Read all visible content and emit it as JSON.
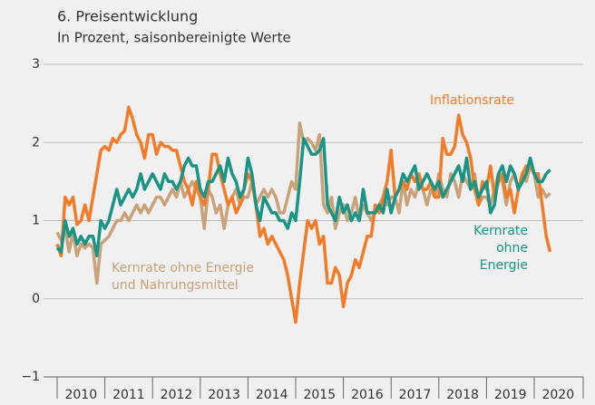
{
  "chart_data": {
    "type": "line",
    "title": "6. Preisentwicklung",
    "subtitle": "In Prozent, saisonbereinigte Werte",
    "categories": [
      "2010",
      null,
      null,
      null,
      null,
      null,
      null,
      null,
      null,
      null,
      null,
      null,
      "2011",
      null,
      null,
      null,
      null,
      null,
      null,
      null,
      null,
      null,
      null,
      null,
      "2012",
      null,
      null,
      null,
      null,
      null,
      null,
      null,
      null,
      null,
      null,
      null,
      "2013",
      null,
      null,
      null,
      null,
      null,
      null,
      null,
      null,
      null,
      null,
      null,
      "2014",
      null,
      null,
      null,
      null,
      null,
      null,
      null,
      null,
      null,
      null,
      null,
      "2015",
      null,
      null,
      null,
      null,
      null,
      null,
      null,
      null,
      null,
      null,
      null,
      "2016",
      null,
      null,
      null,
      null,
      null,
      null,
      null,
      null,
      null,
      null,
      null,
      "2017",
      null,
      null,
      null,
      null,
      null,
      null,
      null,
      null,
      null,
      null,
      null,
      "2018",
      null,
      null,
      null,
      null,
      null,
      null,
      null,
      null,
      null,
      null,
      null,
      "2019",
      null,
      null,
      null,
      null,
      null,
      null,
      null,
      null,
      null,
      null,
      null,
      "2020",
      null,
      null,
      null,
      null
    ],
    "series": [
      {
        "name": "Kernrate ohne Energie und Nahrungsmittel",
        "color": "#c9a27a",
        "values": [
          0.85,
          0.75,
          0.9,
          0.6,
          0.85,
          0.55,
          0.7,
          0.65,
          0.7,
          0.65,
          0.2,
          0.7,
          0.75,
          0.8,
          0.9,
          1.0,
          1.0,
          1.1,
          1.0,
          1.1,
          1.2,
          1.1,
          1.2,
          1.1,
          1.2,
          1.3,
          1.3,
          1.2,
          1.3,
          1.4,
          1.3,
          1.5,
          1.3,
          1.4,
          1.5,
          1.4,
          1.3,
          0.9,
          1.4,
          1.3,
          1.1,
          1.2,
          0.9,
          1.2,
          1.3,
          1.4,
          1.2,
          1.3,
          1.3,
          1.5,
          1.2,
          1.3,
          1.4,
          1.3,
          1.4,
          1.3,
          1.1,
          1.1,
          1.3,
          1.5,
          1.4,
          2.25,
          2.0,
          2.05,
          2.0,
          1.9,
          2.1,
          1.2,
          1.1,
          1.3,
          0.9,
          1.1,
          1.2,
          1.0,
          1.1,
          1.3,
          1.0,
          1.2,
          1.1,
          1.0,
          1.1,
          1.2,
          1.3,
          1.2,
          1.3,
          1.3,
          1.1,
          1.5,
          1.2,
          1.4,
          1.3,
          1.5,
          1.4,
          1.2,
          1.4,
          1.3,
          1.6,
          1.4,
          1.3,
          1.6,
          1.5,
          1.3,
          1.6,
          1.5,
          1.4,
          1.6,
          1.2,
          1.3,
          1.3,
          1.2,
          1.4,
          1.6,
          1.5,
          1.2,
          1.5,
          1.6,
          1.4,
          1.6,
          1.5,
          1.7,
          1.6,
          1.3,
          1.4,
          1.3,
          1.35
        ]
      },
      {
        "name": "Inflationsrate",
        "color": "#f07c2a",
        "values": [
          0.7,
          0.55,
          1.3,
          1.2,
          1.3,
          0.95,
          1.0,
          1.2,
          1.0,
          1.3,
          1.6,
          1.9,
          1.95,
          1.9,
          2.05,
          2.0,
          2.1,
          2.15,
          2.45,
          2.3,
          2.1,
          2.0,
          1.8,
          2.1,
          2.1,
          1.85,
          2.0,
          1.95,
          1.95,
          1.9,
          1.9,
          1.7,
          1.5,
          1.4,
          1.2,
          1.5,
          1.3,
          1.2,
          1.4,
          1.85,
          1.85,
          1.6,
          1.4,
          1.2,
          1.3,
          1.1,
          1.2,
          1.4,
          1.6,
          1.5,
          1.2,
          0.8,
          0.9,
          0.7,
          0.8,
          0.7,
          0.6,
          0.5,
          0.3,
          0.0,
          -0.3,
          0.2,
          0.6,
          1.0,
          0.9,
          1.0,
          0.7,
          0.8,
          0.2,
          0.2,
          0.4,
          0.3,
          -0.1,
          0.2,
          0.3,
          0.5,
          0.4,
          0.6,
          0.8,
          0.8,
          1.2,
          1.1,
          1.3,
          1.5,
          1.9,
          1.3,
          1.4,
          1.5,
          1.4,
          1.6,
          1.5,
          1.6,
          1.4,
          1.4,
          1.5,
          1.3,
          1.3,
          2.05,
          1.85,
          1.85,
          1.95,
          2.35,
          2.1,
          2.0,
          1.8,
          1.4,
          1.2,
          1.5,
          1.4,
          1.7,
          1.3,
          1.5,
          1.6,
          1.3,
          1.4,
          1.1,
          1.4,
          1.6,
          1.7,
          1.7,
          1.6,
          1.6,
          1.2,
          0.8,
          0.6
        ]
      },
      {
        "name": "Kernrate ohne Energie",
        "color": "#1a9485",
        "values": [
          0.65,
          0.6,
          1.0,
          0.8,
          0.9,
          0.7,
          0.8,
          0.7,
          0.8,
          0.8,
          0.55,
          1.0,
          0.9,
          1.0,
          1.2,
          1.4,
          1.2,
          1.3,
          1.4,
          1.3,
          1.4,
          1.6,
          1.4,
          1.5,
          1.6,
          1.5,
          1.4,
          1.6,
          1.5,
          1.5,
          1.4,
          1.5,
          1.7,
          1.8,
          1.7,
          1.7,
          1.4,
          1.3,
          1.5,
          1.5,
          1.6,
          1.7,
          1.5,
          1.8,
          1.6,
          1.5,
          1.3,
          1.4,
          1.8,
          1.6,
          1.2,
          1.0,
          1.3,
          1.2,
          1.1,
          1.1,
          1.0,
          1.0,
          0.9,
          1.1,
          1.0,
          1.5,
          2.05,
          1.95,
          1.85,
          1.85,
          1.9,
          2.05,
          1.2,
          1.1,
          1.0,
          1.3,
          1.1,
          1.2,
          1.0,
          1.1,
          1.0,
          1.4,
          1.1,
          1.1,
          1.1,
          1.2,
          1.1,
          1.4,
          1.1,
          1.3,
          1.4,
          1.6,
          1.5,
          1.6,
          1.7,
          1.4,
          1.5,
          1.6,
          1.5,
          1.4,
          1.5,
          1.3,
          1.4,
          1.5,
          1.6,
          1.7,
          1.5,
          1.8,
          1.4,
          1.5,
          1.3,
          1.4,
          1.5,
          1.1,
          1.2,
          1.6,
          1.7,
          1.5,
          1.7,
          1.6,
          1.4,
          1.5,
          1.6,
          1.8,
          1.6,
          1.5,
          1.5,
          1.6,
          1.65
        ]
      }
    ],
    "ylim": [
      -1,
      3
    ],
    "yticks": [
      {
        "value": -1,
        "label": "−1"
      },
      0,
      1,
      2,
      3
    ],
    "grid": true
  }
}
